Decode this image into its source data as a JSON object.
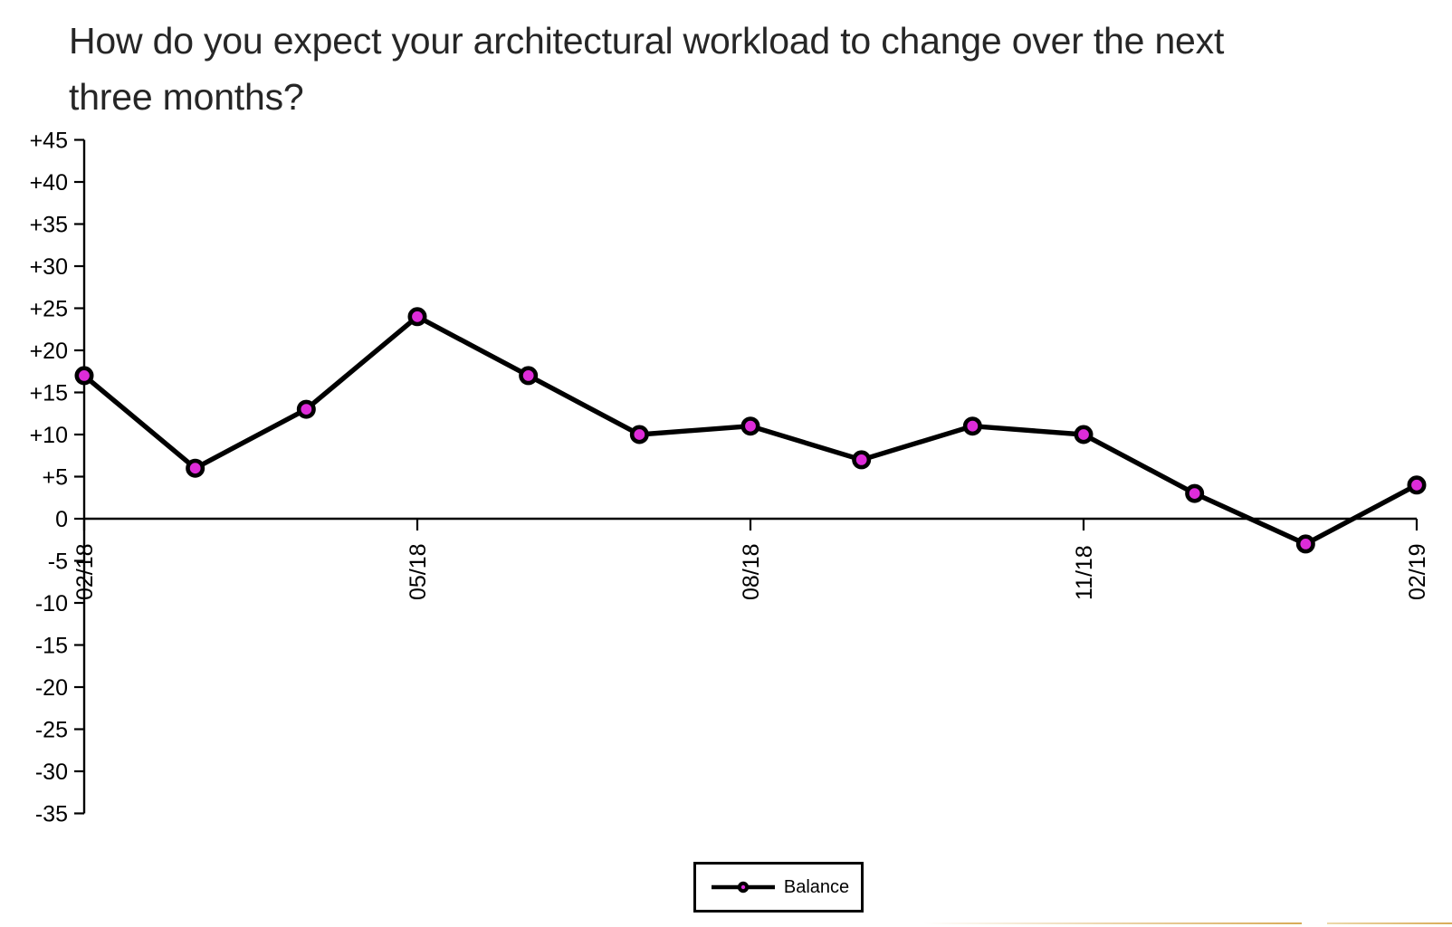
{
  "title": "How do you expect your architectural workload to change over the next three months?",
  "title_lines": [
    "How do you expect your architectural workload to change over the next",
    "three months?"
  ],
  "chart_data": {
    "type": "line",
    "title": "How do you expect your architectural workload to change over the next three months?",
    "x": [
      "02/18",
      "03/18",
      "04/18",
      "05/18",
      "06/18",
      "07/18",
      "08/18",
      "09/18",
      "10/18",
      "11/18",
      "12/18",
      "01/19",
      "02/19"
    ],
    "x_tick_labels": [
      "02/18",
      "05/18",
      "08/18",
      "11/18",
      "02/19"
    ],
    "series": [
      {
        "name": "Balance",
        "values": [
          17,
          6,
          13,
          24,
          17,
          10,
          11,
          7,
          11,
          10,
          3,
          -3,
          4
        ],
        "line_color": "#000000",
        "marker_fill": "#de2cd9",
        "marker_ring": "#000000"
      }
    ],
    "ylim": [
      -35,
      45
    ],
    "y_tick_step": 5,
    "y_tick_labels": [
      "+45",
      "+40",
      "+35",
      "+30",
      "+25",
      "+20",
      "+15",
      "+10",
      "+5",
      "0",
      "-5",
      "-10",
      "-15",
      "-20",
      "-25",
      "-30",
      "-35"
    ],
    "grid": false,
    "legend_position": "bottom-center",
    "axis_color": "#000000",
    "label_color": "#000000"
  },
  "legend": {
    "label": "Balance"
  },
  "decor": {
    "footer_line_color": "#d8ab58"
  }
}
